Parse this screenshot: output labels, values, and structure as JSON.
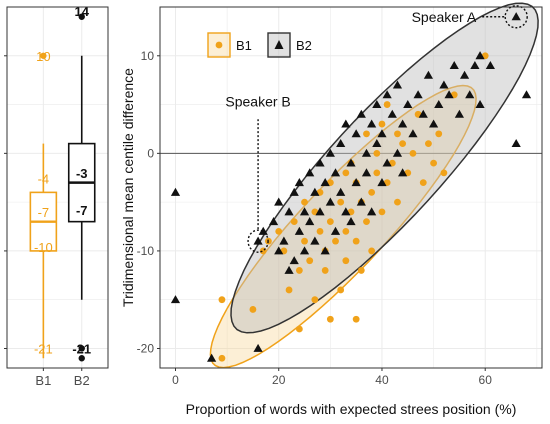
{
  "colors": {
    "B1": "#f0a21a",
    "B2": "#111111",
    "grid": "#ebebeb",
    "panel_border": "#333333",
    "b2_fill": "#bdbdbd",
    "b1_fill": "#f6d08a"
  },
  "chart_data": [
    {
      "type": "box",
      "categories": [
        "B1",
        "B2"
      ],
      "ylim": [
        -22,
        15
      ],
      "yticks": [
        -20,
        -10,
        0,
        10
      ],
      "grid": true,
      "boxes": [
        {
          "name": "B1",
          "q1": -10,
          "median": -7,
          "q3": -4,
          "whisker_low": -21,
          "whisker_high": 1,
          "outliers": [
            10
          ],
          "labels": [
            {
              "text": "10",
              "y": 10
            },
            {
              "text": "-4",
              "y": -2.6
            },
            {
              "text": "-7",
              "y": -6
            },
            {
              "text": "-10",
              "y": -9.6
            },
            {
              "text": "-21",
              "y": -20
            }
          ]
        },
        {
          "name": "B2",
          "q1": -7,
          "median": -3,
          "q3": 1,
          "whisker_low": -15,
          "whisker_high": 10,
          "outliers": [
            14,
            -20,
            -21
          ],
          "labels": [
            {
              "text": "14",
              "y": 14.6
            },
            {
              "text": "-3",
              "y": -2
            },
            {
              "text": "-7",
              "y": -5.8
            },
            {
              "text": "-21",
              "y": -20
            }
          ]
        }
      ]
    },
    {
      "type": "scatter",
      "xlabel": "Proportion of words with expected strees position (%)",
      "ylabel": "Tridimensional mean centile difference",
      "xlim": [
        -3,
        71
      ],
      "ylim": [
        -22,
        15
      ],
      "xticks": [
        0,
        20,
        40,
        60
      ],
      "yticks": [
        -20,
        -10,
        0,
        10
      ],
      "grid": true,
      "legend_position": "top-left",
      "series": [
        {
          "name": "B1",
          "marker": "circle",
          "points": [
            [
              9,
              -21
            ],
            [
              9,
              -15
            ],
            [
              15,
              -16
            ],
            [
              17,
              -10
            ],
            [
              18,
              -9
            ],
            [
              20,
              -8
            ],
            [
              21,
              -10
            ],
            [
              22,
              -14
            ],
            [
              23,
              -7
            ],
            [
              24,
              -18
            ],
            [
              24,
              -12
            ],
            [
              25,
              -9
            ],
            [
              25,
              -5
            ],
            [
              26,
              -11
            ],
            [
              27,
              -6
            ],
            [
              27,
              -15
            ],
            [
              28,
              -4
            ],
            [
              28,
              -8
            ],
            [
              29,
              -10
            ],
            [
              29,
              -12
            ],
            [
              30,
              -7
            ],
            [
              30,
              -3
            ],
            [
              30,
              -17
            ],
            [
              31,
              -9
            ],
            [
              32,
              -5
            ],
            [
              32,
              -14
            ],
            [
              33,
              -2
            ],
            [
              33,
              -8
            ],
            [
              33,
              -11
            ],
            [
              34,
              -6
            ],
            [
              34,
              -1
            ],
            [
              35,
              -9
            ],
            [
              35,
              -3
            ],
            [
              35,
              -17
            ],
            [
              36,
              -5
            ],
            [
              36,
              -12
            ],
            [
              37,
              -7
            ],
            [
              37,
              2
            ],
            [
              38,
              -4
            ],
            [
              38,
              -10
            ],
            [
              39,
              -2
            ],
            [
              39,
              0
            ],
            [
              40,
              -6
            ],
            [
              40,
              3
            ],
            [
              41,
              -3
            ],
            [
              41,
              5
            ],
            [
              42,
              -1
            ],
            [
              43,
              -5
            ],
            [
              43,
              2
            ],
            [
              44,
              1
            ],
            [
              45,
              -2
            ],
            [
              46,
              0
            ],
            [
              47,
              4
            ],
            [
              48,
              -3
            ],
            [
              49,
              1
            ],
            [
              50,
              -1
            ],
            [
              51,
              2
            ],
            [
              52,
              -2
            ],
            [
              54,
              6
            ],
            [
              60,
              10
            ]
          ]
        },
        {
          "name": "B2",
          "marker": "triangle",
          "points": [
            [
              0,
              -4
            ],
            [
              0,
              -15
            ],
            [
              7,
              -21
            ],
            [
              16,
              -20
            ],
            [
              16,
              -9
            ],
            [
              17,
              -8
            ],
            [
              19,
              -7
            ],
            [
              20,
              -10
            ],
            [
              20,
              -5
            ],
            [
              21,
              -9
            ],
            [
              22,
              -6
            ],
            [
              22,
              -12
            ],
            [
              23,
              -11
            ],
            [
              23,
              -4
            ],
            [
              24,
              -8
            ],
            [
              24,
              -3
            ],
            [
              25,
              -10
            ],
            [
              25,
              -6
            ],
            [
              26,
              -7
            ],
            [
              26,
              -2
            ],
            [
              27,
              -9
            ],
            [
              27,
              -4
            ],
            [
              28,
              -6
            ],
            [
              28,
              -1
            ],
            [
              29,
              -10
            ],
            [
              29,
              -3
            ],
            [
              30,
              -5
            ],
            [
              30,
              0
            ],
            [
              31,
              -8
            ],
            [
              31,
              -2
            ],
            [
              32,
              -4
            ],
            [
              32,
              1
            ],
            [
              33,
              -6
            ],
            [
              33,
              3
            ],
            [
              34,
              -1
            ],
            [
              34,
              -7
            ],
            [
              35,
              -3
            ],
            [
              35,
              2
            ],
            [
              36,
              -5
            ],
            [
              36,
              4
            ],
            [
              37,
              0
            ],
            [
              37,
              -2
            ],
            [
              38,
              3
            ],
            [
              38,
              -6
            ],
            [
              39,
              1
            ],
            [
              39,
              5
            ],
            [
              40,
              -3
            ],
            [
              40,
              2
            ],
            [
              41,
              6
            ],
            [
              41,
              -1
            ],
            [
              42,
              4
            ],
            [
              43,
              0
            ],
            [
              43,
              7
            ],
            [
              44,
              3
            ],
            [
              44,
              -2
            ],
            [
              45,
              5
            ],
            [
              46,
              2
            ],
            [
              47,
              6
            ],
            [
              48,
              4
            ],
            [
              49,
              8
            ],
            [
              50,
              3
            ],
            [
              51,
              5
            ],
            [
              52,
              7
            ],
            [
              53,
              6
            ],
            [
              54,
              9
            ],
            [
              55,
              4
            ],
            [
              56,
              8
            ],
            [
              57,
              6
            ],
            [
              58,
              9
            ],
            [
              59,
              10
            ],
            [
              59,
              5
            ],
            [
              61,
              9
            ],
            [
              66,
              1
            ],
            [
              68,
              6
            ],
            [
              66,
              14
            ]
          ]
        }
      ],
      "ellipses": [
        {
          "name": "B1",
          "cx": 32.5,
          "cy": -7.5,
          "semi_major": 29,
          "semi_minor": 5.5,
          "angle_deg": 28
        },
        {
          "name": "B2",
          "cx": 40.5,
          "cy": -1.5,
          "semi_major": 33.5,
          "semi_minor": 7,
          "angle_deg": 28
        }
      ],
      "annotations": [
        {
          "text": "Speaker A",
          "x": 66,
          "y": 14
        },
        {
          "text": "Speaker B",
          "x": 16,
          "y": -9
        }
      ]
    }
  ]
}
